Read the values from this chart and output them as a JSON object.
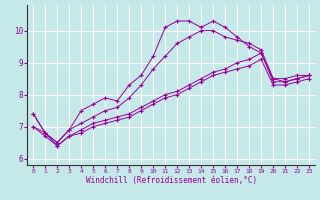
{
  "xlabel": "Windchill (Refroidissement éolien,°C)",
  "bg_color": "#c5e8e8",
  "line_color": "#990099",
  "grid_color": "#ffffff",
  "xlim": [
    -0.5,
    23.5
  ],
  "ylim": [
    5.8,
    10.8
  ],
  "xticks": [
    0,
    1,
    2,
    3,
    4,
    5,
    6,
    7,
    8,
    9,
    10,
    11,
    12,
    13,
    14,
    15,
    16,
    17,
    18,
    19,
    20,
    21,
    22,
    23
  ],
  "yticks": [
    6,
    7,
    8,
    9,
    10
  ],
  "series": {
    "line1": {
      "x": [
        0,
        1,
        2,
        3,
        4,
        5,
        6,
        7,
        8,
        9,
        10,
        11,
        12,
        13,
        14,
        15,
        16,
        17,
        18,
        19,
        20,
        21,
        22,
        23
      ],
      "y": [
        7.4,
        6.8,
        6.5,
        6.9,
        7.5,
        7.7,
        7.9,
        7.8,
        8.3,
        8.6,
        9.2,
        10.1,
        10.3,
        10.3,
        10.1,
        10.3,
        10.1,
        9.8,
        9.5,
        9.3,
        8.5,
        8.5,
        8.6,
        8.6
      ]
    },
    "line2": {
      "x": [
        0,
        1,
        2,
        3,
        4,
        5,
        6,
        7,
        8,
        9,
        10,
        11,
        12,
        13,
        14,
        15,
        16,
        17,
        18,
        19,
        20,
        21,
        22,
        23
      ],
      "y": [
        7.4,
        6.8,
        6.5,
        6.9,
        7.1,
        7.3,
        7.5,
        7.6,
        7.9,
        8.3,
        8.8,
        9.2,
        9.6,
        9.8,
        10.0,
        10.0,
        9.8,
        9.7,
        9.6,
        9.4,
        8.5,
        8.4,
        8.5,
        8.6
      ]
    },
    "line3": {
      "x": [
        0,
        1,
        2,
        3,
        4,
        5,
        6,
        7,
        8,
        9,
        10,
        11,
        12,
        13,
        14,
        15,
        16,
        17,
        18,
        19,
        20,
        21,
        22,
        23
      ],
      "y": [
        7.0,
        6.8,
        6.4,
        6.7,
        6.9,
        7.1,
        7.2,
        7.3,
        7.4,
        7.6,
        7.8,
        8.0,
        8.1,
        8.3,
        8.5,
        8.7,
        8.8,
        9.0,
        9.1,
        9.3,
        8.4,
        8.4,
        8.5,
        8.6
      ]
    },
    "line4": {
      "x": [
        0,
        1,
        2,
        3,
        4,
        5,
        6,
        7,
        8,
        9,
        10,
        11,
        12,
        13,
        14,
        15,
        16,
        17,
        18,
        19,
        20,
        21,
        22,
        23
      ],
      "y": [
        7.0,
        6.7,
        6.4,
        6.7,
        6.8,
        7.0,
        7.1,
        7.2,
        7.3,
        7.5,
        7.7,
        7.9,
        8.0,
        8.2,
        8.4,
        8.6,
        8.7,
        8.8,
        8.9,
        9.1,
        8.3,
        8.3,
        8.4,
        8.5
      ]
    }
  }
}
